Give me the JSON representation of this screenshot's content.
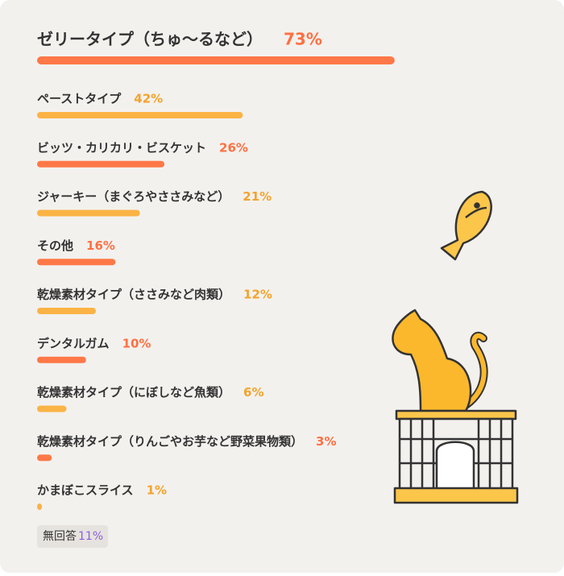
{
  "chart_data": {
    "type": "bar",
    "categories": [
      "ゼリータイプ（ちゅ〜るなど）",
      "ペーストタイプ",
      "ビッツ・カリカリ・ビスケット",
      "ジャーキー（まぐろやささみなど）",
      "その他",
      "乾燥素材タイプ（ささみなど肉類）",
      "デンタルガム",
      "乾燥素材タイプ（にぼしなど魚類）",
      "乾燥素材タイプ（りんごやお芋など野菜果物類）",
      "かまぼこスライス"
    ],
    "values": [
      73,
      42,
      26,
      21,
      16,
      12,
      10,
      6,
      3,
      1
    ],
    "value_labels": [
      "73%",
      "42%",
      "26%",
      "21%",
      "16%",
      "12%",
      "10%",
      "6%",
      "3%",
      "1%"
    ],
    "colors": [
      "#ff7847",
      "#fbb345"
    ],
    "label_colors": [
      "#ff7043",
      "#f3a32c"
    ],
    "no_answer": {
      "label": "無回答",
      "value": 11,
      "value_label": "11%",
      "color": "#8a5ee0"
    }
  }
}
